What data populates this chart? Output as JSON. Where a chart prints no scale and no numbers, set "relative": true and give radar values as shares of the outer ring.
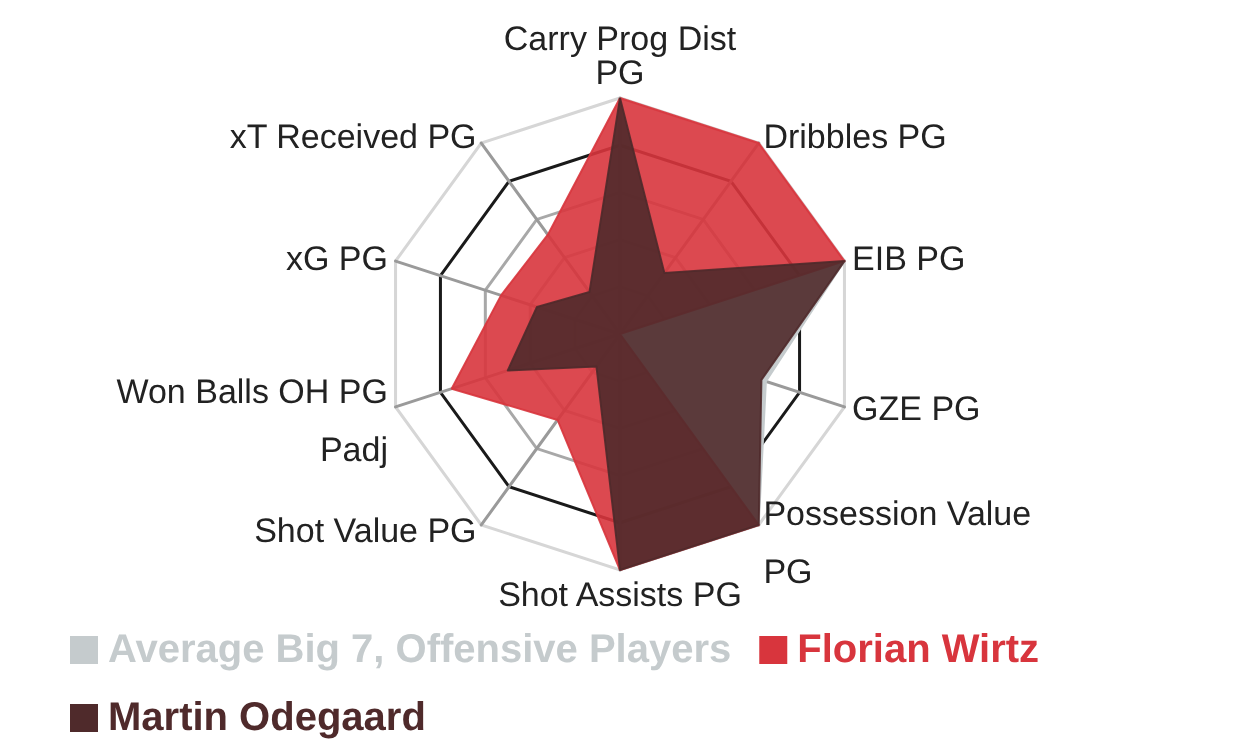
{
  "chart_data": {
    "type": "radar",
    "relative": true,
    "legend": "bottom",
    "categories": [
      "Carry Prog Dist PG",
      "Dribbles PG",
      "EIB PG",
      "GZE PG",
      "Possession Value PG",
      "Shot Assists PG",
      "Shot Value PG",
      "Won Balls OH PG Padj",
      "xG PG",
      "xT Received PG"
    ],
    "series": [
      {
        "name": "Average Big 7, Offensive Players",
        "color": "#c5cbcd",
        "values": [
          null,
          null,
          1,
          0.65,
          1,
          null,
          null,
          null,
          null,
          null
        ]
      },
      {
        "name": "Florian Wirtz",
        "color": "#d8353d",
        "values": [
          1,
          1,
          1,
          null,
          1,
          1,
          0.45,
          0.75,
          0.53,
          0.52
        ]
      },
      {
        "name": "Martin Odegaard",
        "color": "#4f2a2b",
        "values": [
          1,
          0.32,
          1,
          0.63,
          1,
          1,
          0.17,
          0.5,
          0.37,
          0.22
        ]
      }
    ]
  }
}
